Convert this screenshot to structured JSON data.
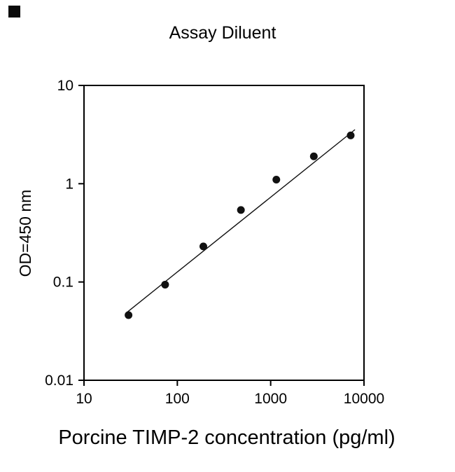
{
  "figure": {
    "background": "#ffffff",
    "ink_color": "#000000"
  },
  "chart_data": {
    "type": "scatter",
    "title": "Assay Diluent",
    "xlabel": "Porcine TIMP-2 concentration (pg/ml)",
    "ylabel": "OD=450 nm",
    "x_scale": "log",
    "y_scale": "log",
    "xlim": [
      10,
      10000
    ],
    "ylim": [
      0.01,
      10
    ],
    "x_ticks": [
      10,
      100,
      1000,
      10000
    ],
    "x_tick_labels": [
      "10",
      "100",
      "1000",
      "10000"
    ],
    "y_ticks": [
      0.01,
      0.1,
      1,
      10
    ],
    "y_tick_labels": [
      "0.01",
      "0.1",
      "1",
      "10"
    ],
    "grid": false,
    "legend": "none",
    "frame": "box",
    "series": [
      {
        "name": "standard-curve-points",
        "type": "scatter",
        "marker": "filled-circle",
        "marker_color": "#111111",
        "marker_radius": 5.5,
        "x": [
          30,
          74,
          190,
          480,
          1150,
          2900,
          7200
        ],
        "y": [
          0.046,
          0.094,
          0.23,
          0.54,
          1.1,
          1.9,
          3.1
        ]
      },
      {
        "name": "fit-line",
        "type": "line",
        "color": "#111111",
        "stroke_width": 1.4,
        "x": [
          28,
          8000
        ],
        "y": [
          0.048,
          3.55
        ]
      }
    ]
  }
}
